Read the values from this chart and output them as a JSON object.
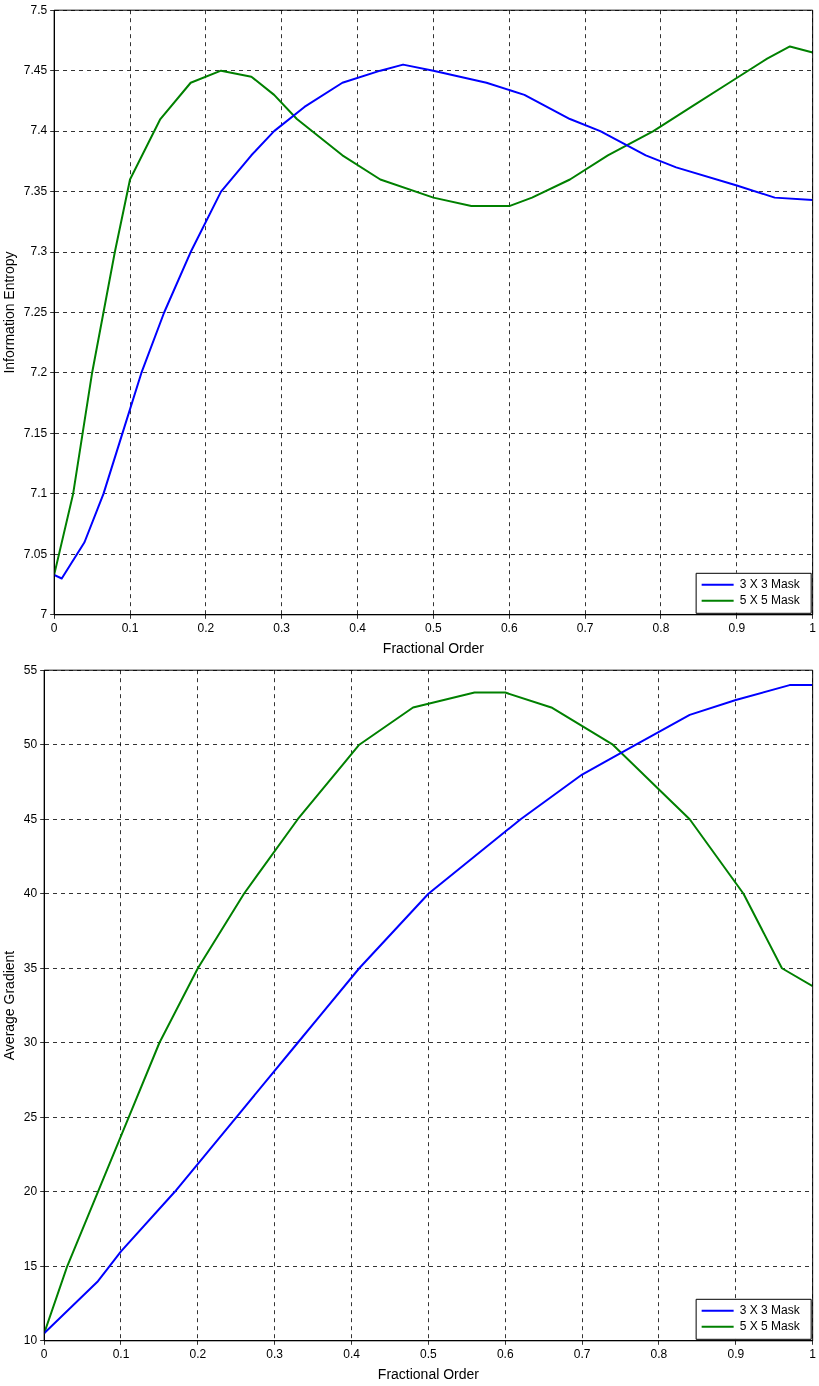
{
  "chart_data": [
    {
      "type": "line",
      "xlabel": "Fractional Order",
      "ylabel": "Information Entropy",
      "xlim": [
        0,
        1
      ],
      "ylim": [
        7,
        7.5
      ],
      "xticks": [
        0,
        0.1,
        0.2,
        0.3,
        0.4,
        0.5,
        0.6,
        0.7,
        0.8,
        0.9,
        1
      ],
      "yticks": [
        7,
        7.05,
        7.1,
        7.15,
        7.2,
        7.25,
        7.3,
        7.35,
        7.4,
        7.45,
        7.5
      ],
      "grid": true,
      "legend": "bottom right",
      "series": [
        {
          "name": "3 X 3 Mask",
          "color": "#0000ff",
          "x": [
            0,
            0.01,
            0.04,
            0.065,
            0.09,
            0.115,
            0.145,
            0.18,
            0.22,
            0.26,
            0.29,
            0.33,
            0.38,
            0.43,
            0.46,
            0.5,
            0.57,
            0.62,
            0.68,
            0.72,
            0.78,
            0.82,
            0.9,
            0.95,
            1
          ],
          "values": [
            7.033,
            7.03,
            7.06,
            7.1,
            7.15,
            7.2,
            7.25,
            7.3,
            7.35,
            7.38,
            7.4,
            7.42,
            7.44,
            7.45,
            7.455,
            7.45,
            7.44,
            7.43,
            7.41,
            7.4,
            7.38,
            7.37,
            7.355,
            7.345,
            7.343
          ]
        },
        {
          "name": "5 X 5 Mask",
          "color": "#008000",
          "x": [
            0,
            0.025,
            0.05,
            0.08,
            0.1,
            0.14,
            0.18,
            0.22,
            0.26,
            0.29,
            0.32,
            0.38,
            0.43,
            0.5,
            0.55,
            0.6,
            0.63,
            0.68,
            0.73,
            0.79,
            0.84,
            0.89,
            0.94,
            0.97,
            1
          ],
          "values": [
            7.033,
            7.1,
            7.2,
            7.3,
            7.36,
            7.41,
            7.44,
            7.45,
            7.445,
            7.43,
            7.41,
            7.38,
            7.36,
            7.345,
            7.338,
            7.338,
            7.345,
            7.36,
            7.38,
            7.4,
            7.42,
            7.44,
            7.46,
            7.47,
            7.465
          ]
        }
      ]
    },
    {
      "type": "line",
      "xlabel": "Fractional Order",
      "ylabel": "Average Gradient",
      "xlim": [
        0,
        1
      ],
      "ylim": [
        10,
        55
      ],
      "xticks": [
        0,
        0.1,
        0.2,
        0.3,
        0.4,
        0.5,
        0.6,
        0.7,
        0.8,
        0.9,
        1
      ],
      "yticks": [
        10,
        15,
        20,
        25,
        30,
        35,
        40,
        45,
        50,
        55
      ],
      "grid": true,
      "legend": "bottom right",
      "series": [
        {
          "name": "3 X 3 Mask",
          "color": "#0000ff",
          "x": [
            0,
            0.07,
            0.1,
            0.17,
            0.25,
            0.33,
            0.41,
            0.5,
            0.62,
            0.7,
            0.77,
            0.84,
            0.9,
            0.97,
            1
          ],
          "values": [
            10.5,
            14,
            16,
            20,
            25,
            30,
            35,
            40,
            45,
            48,
            50,
            52,
            53,
            54,
            54
          ]
        },
        {
          "name": "5 X 5 Mask",
          "color": "#008000",
          "x": [
            0,
            0.03,
            0.07,
            0.11,
            0.15,
            0.2,
            0.26,
            0.33,
            0.41,
            0.48,
            0.56,
            0.6,
            0.66,
            0.74,
            0.8,
            0.84,
            0.91,
            0.96,
            1
          ],
          "values": [
            10.5,
            15,
            20,
            25,
            30,
            35,
            40,
            45,
            50,
            52.5,
            53.5,
            53.5,
            52.5,
            50,
            47,
            45,
            40,
            35,
            33.8
          ]
        }
      ]
    }
  ]
}
